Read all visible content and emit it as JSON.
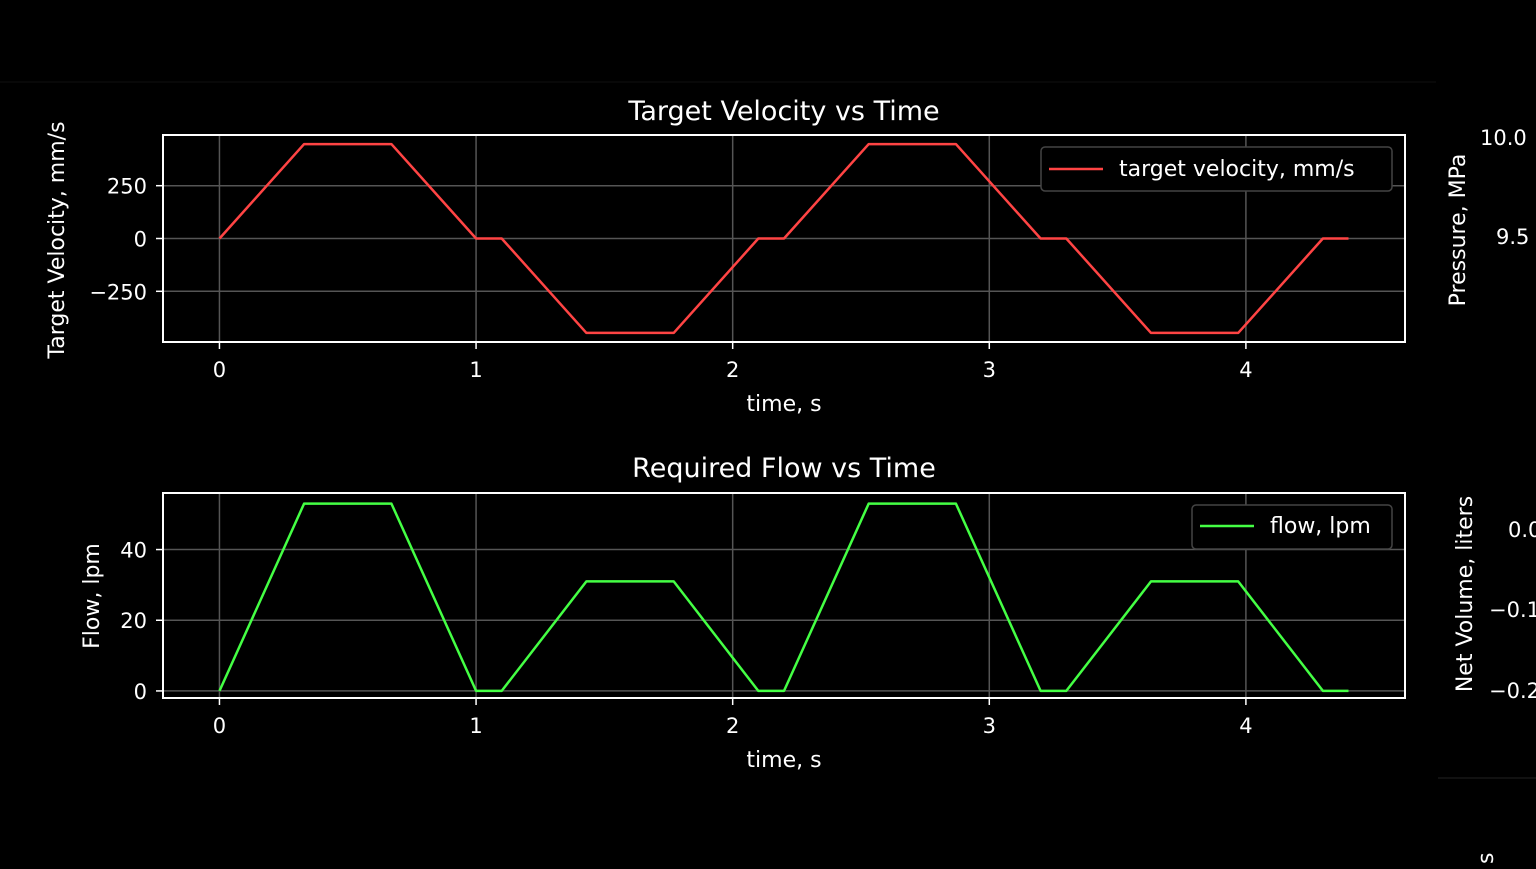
{
  "colors": {
    "background": "#000000",
    "frame": "#ffffff",
    "grid": "#555555",
    "legend_border": "#444444",
    "velocity_line": "#ff4444",
    "flow_line": "#44ff44"
  },
  "chart_data": [
    {
      "type": "line",
      "title": "Target Velocity vs Time",
      "xlabel": "time, s",
      "ylabel": "Target Velocity, mm/s",
      "xlim": [
        -0.22,
        4.62
      ],
      "ylim": [
        -490,
        490
      ],
      "xticks": [
        0,
        1,
        2,
        3,
        4
      ],
      "xtick_labels": [
        "0",
        "1",
        "2",
        "3",
        "4"
      ],
      "yticks": [
        250,
        0,
        -250
      ],
      "ytick_labels": [
        "250",
        "0",
        "−250"
      ],
      "grid": true,
      "legend_position": "top-right",
      "series": [
        {
          "name": "target velocity, mm/s",
          "color": "#ff4444",
          "x": [
            0,
            0.33,
            0.67,
            1.0,
            1.1,
            1.43,
            1.77,
            2.1,
            2.2,
            2.53,
            2.87,
            3.2,
            3.3,
            3.63,
            3.97,
            4.3,
            4.4
          ],
          "y": [
            0,
            447,
            447,
            0,
            0,
            -447,
            -447,
            0,
            0,
            447,
            447,
            0,
            0,
            -447,
            -447,
            0,
            0
          ]
        }
      ]
    },
    {
      "type": "line",
      "title": "Required Flow vs Time",
      "xlabel": "time, s",
      "ylabel": "Flow, lpm",
      "xlim": [
        -0.22,
        4.62
      ],
      "ylim": [
        -2,
        56
      ],
      "xticks": [
        0,
        1,
        2,
        3,
        4
      ],
      "xtick_labels": [
        "0",
        "1",
        "2",
        "3",
        "4"
      ],
      "yticks": [
        40,
        20,
        0
      ],
      "ytick_labels": [
        "40",
        "20",
        "0"
      ],
      "grid": true,
      "legend_position": "top-right",
      "series": [
        {
          "name": "flow, lpm",
          "color": "#44ff44",
          "x": [
            0,
            0.33,
            0.67,
            1.0,
            1.1,
            1.43,
            1.77,
            2.1,
            2.2,
            2.53,
            2.87,
            3.2,
            3.3,
            3.63,
            3.97,
            4.3,
            4.4
          ],
          "y": [
            0,
            53,
            53,
            0,
            0,
            31,
            31,
            0,
            0,
            53,
            53,
            0,
            0,
            31,
            31,
            0,
            0
          ]
        }
      ]
    },
    {
      "type": "line",
      "ylabel": "Pressure, MPa",
      "ytick_labels": [
        "10.0",
        "9.5"
      ]
    },
    {
      "type": "line",
      "ylabel": "Net Volume, liters",
      "ytick_labels": [
        "0.0",
        "−0.1",
        "−0.2"
      ]
    }
  ]
}
